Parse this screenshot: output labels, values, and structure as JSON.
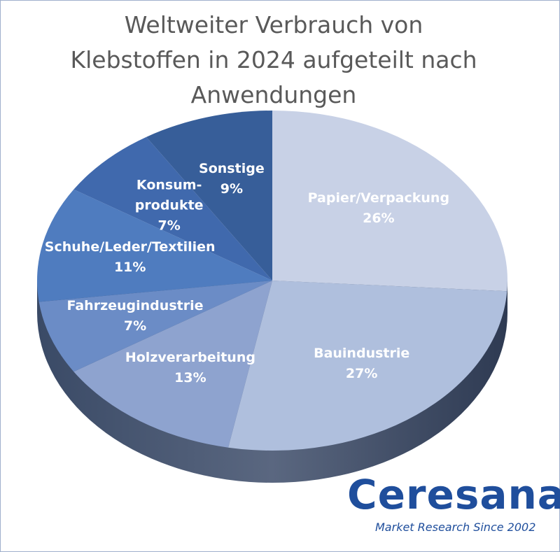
{
  "chart_data": {
    "type": "pie",
    "title": "Weltweiter Verbrauch von Klebstoffen in 2024 aufgeteilt nach Anwendungen",
    "categories": [
      "Papier/Verpackung",
      "Bauindustrie",
      "Holzverarbeitung",
      "Fahrzeugindustrie",
      "Schuhe/Leder/Textilien",
      "Konsum-\nprodukte",
      "Sonstige"
    ],
    "values": [
      26,
      27,
      13,
      7,
      11,
      7,
      9
    ],
    "value_labels": [
      "26%",
      "27%",
      "13%",
      "7%",
      "11%",
      "7%",
      "9%"
    ],
    "colors": [
      "#c8d1e6",
      "#afbfdd",
      "#8ea3cf",
      "#6b8cc6",
      "#4f7cbf",
      "#4069ad",
      "#375e99"
    ]
  },
  "logo": {
    "name": "Ceresana",
    "tagline": "Market Research Since 2002"
  }
}
